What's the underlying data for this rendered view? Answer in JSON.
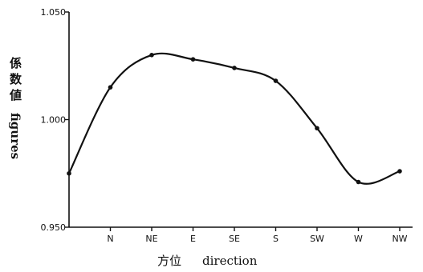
{
  "chart_data": {
    "type": "line",
    "categories": [
      "",
      "N",
      "NE",
      "E",
      "SE",
      "S",
      "SW",
      "W",
      "NW"
    ],
    "x_tick_labels": [
      "N",
      "NE",
      "E",
      "SE",
      "S",
      "SW",
      "W",
      "NW"
    ],
    "values": [
      0.975,
      1.015,
      1.03,
      1.028,
      1.024,
      1.018,
      0.996,
      0.971,
      0.976
    ],
    "ylim": [
      0.95,
      1.05
    ],
    "y_ticks": [
      "0.950",
      "1.000",
      "1.050"
    ],
    "ylabel_cjk": "係数値",
    "ylabel_latin": "figures",
    "xlabel_cjk": "方位",
    "xlabel_latin": "direction",
    "grid": false,
    "smooth": true,
    "line_color": "#111111",
    "marker_color": "#111111"
  }
}
